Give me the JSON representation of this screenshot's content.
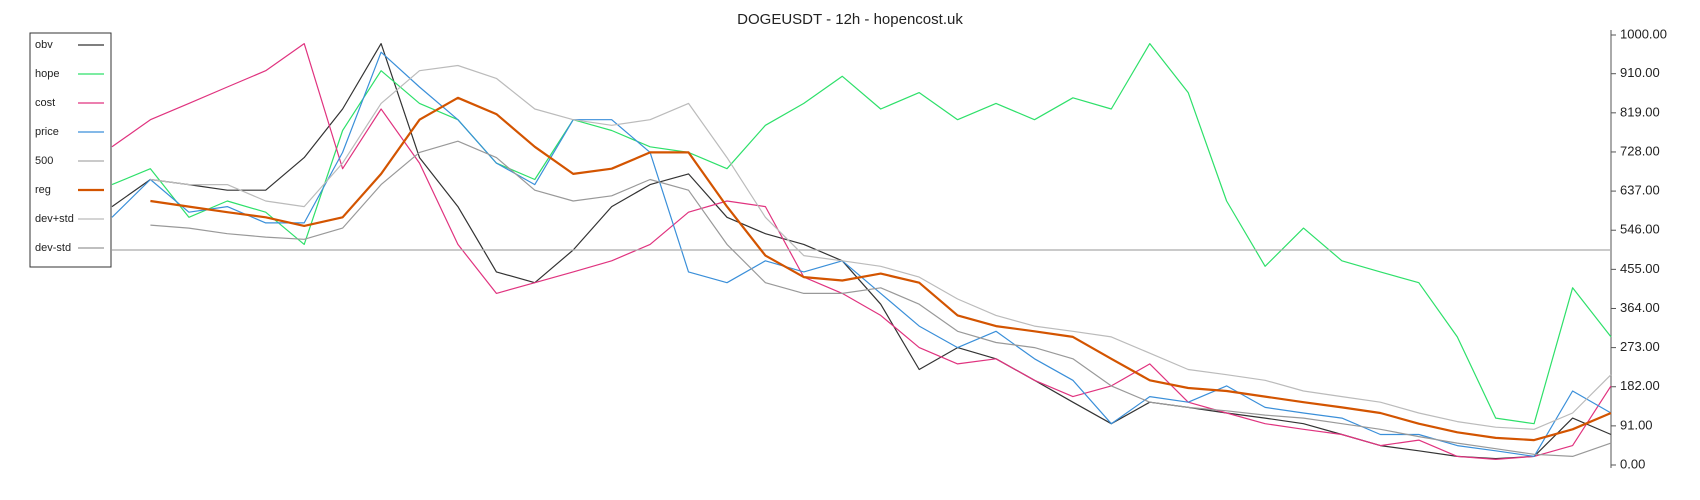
{
  "chart_data": {
    "type": "line",
    "title": "DOGEUSDT - 12h - hopencost.uk",
    "ylim": [
      0,
      1000
    ],
    "yticks": [
      {
        "value": 0,
        "label": "0.00"
      },
      {
        "value": 91,
        "label": "91.00"
      },
      {
        "value": 182,
        "label": "182.00"
      },
      {
        "value": 273,
        "label": "273.00"
      },
      {
        "value": 364,
        "label": "364.00"
      },
      {
        "value": 455,
        "label": "455.00"
      },
      {
        "value": 546,
        "label": "546.00"
      },
      {
        "value": 637,
        "label": "637.00"
      },
      {
        "value": 728,
        "label": "728.00"
      },
      {
        "value": 819,
        "label": "819.00"
      },
      {
        "value": 910,
        "label": "910.00"
      },
      {
        "value": 1000,
        "label": "1000.00"
      }
    ],
    "legend": "upper left",
    "series": [
      {
        "name": "obv",
        "color": "#333333",
        "width": 1.2,
        "values": [
          601,
          664,
          652,
          639,
          639,
          715,
          828,
          980,
          715,
          601,
          449,
          424,
          500,
          601,
          652,
          677,
          576,
          538,
          513,
          475,
          374,
          222,
          273,
          247,
          197,
          146,
          96,
          146,
          134,
          121,
          109,
          96,
          71,
          45,
          33,
          20,
          15,
          20,
          109,
          71
        ]
      },
      {
        "name": "hope",
        "color": "#2ee06a",
        "width": 1.2,
        "values": [
          652,
          689,
          576,
          614,
          588,
          513,
          778,
          917,
          841,
          803,
          702,
          664,
          803,
          778,
          740,
          727,
          689,
          790,
          841,
          904,
          828,
          866,
          803,
          841,
          803,
          854,
          828,
          980,
          866,
          614,
          462,
          551,
          475,
          449,
          424,
          298,
          109,
          96,
          412,
          298
        ]
      },
      {
        "name": "cost",
        "color": "#e0337f",
        "width": 1.2,
        "values": [
          740,
          803,
          841,
          879,
          917,
          980,
          689,
          828,
          702,
          513,
          399,
          424,
          449,
          475,
          513,
          588,
          614,
          601,
          437,
          399,
          348,
          273,
          235,
          247,
          197,
          159,
          184,
          235,
          146,
          121,
          96,
          83,
          71,
          45,
          58,
          20,
          13,
          20,
          45,
          184
        ]
      },
      {
        "name": "price",
        "color": "#3a8fd9",
        "width": 1.2,
        "values": [
          576,
          664,
          588,
          601,
          563,
          563,
          727,
          960,
          879,
          803,
          702,
          652,
          803,
          803,
          727,
          449,
          424,
          475,
          449,
          475,
          399,
          323,
          273,
          311,
          247,
          197,
          96,
          159,
          146,
          184,
          134,
          121,
          109,
          71,
          71,
          45,
          33,
          20,
          172,
          121
        ]
      },
      {
        "name": "500",
        "color": "#aaaaaa",
        "width": 1.2,
        "values": [
          500,
          500,
          500,
          500,
          500,
          500,
          500,
          500,
          500,
          500,
          500,
          500,
          500,
          500,
          500,
          500,
          500,
          500,
          500,
          500,
          500,
          500,
          500,
          500,
          500,
          500,
          500,
          500,
          500,
          500,
          500,
          500,
          500,
          500,
          500,
          500,
          500,
          500,
          500,
          500
        ]
      },
      {
        "name": "reg",
        "color": "#d35400",
        "width": 2.2,
        "values": [
          null,
          614,
          601,
          588,
          576,
          556,
          576,
          677,
          803,
          854,
          816,
          740,
          677,
          689,
          727,
          727,
          601,
          487,
          437,
          429,
          445,
          424,
          348,
          323,
          311,
          298,
          247,
          197,
          179,
          172,
          159,
          146,
          134,
          121,
          96,
          76,
          63,
          58,
          83,
          121
        ]
      },
      {
        "name": "dev+std",
        "color": "#bbbbbb",
        "width": 1.2,
        "values": [
          null,
          664,
          652,
          652,
          614,
          601,
          702,
          841,
          917,
          929,
          899,
          828,
          803,
          790,
          803,
          841,
          715,
          576,
          487,
          475,
          462,
          437,
          386,
          348,
          323,
          311,
          298,
          260,
          222,
          210,
          197,
          172,
          159,
          146,
          121,
          101,
          88,
          83,
          121,
          210
        ]
      },
      {
        "name": "dev-std",
        "color": "#999999",
        "width": 1.2,
        "values": [
          null,
          558,
          551,
          538,
          530,
          525,
          551,
          652,
          727,
          753,
          715,
          639,
          614,
          626,
          664,
          639,
          513,
          424,
          399,
          399,
          412,
          374,
          311,
          285,
          273,
          247,
          184,
          146,
          134,
          126,
          116,
          109,
          96,
          83,
          66,
          51,
          38,
          25,
          20,
          51
        ]
      }
    ]
  }
}
